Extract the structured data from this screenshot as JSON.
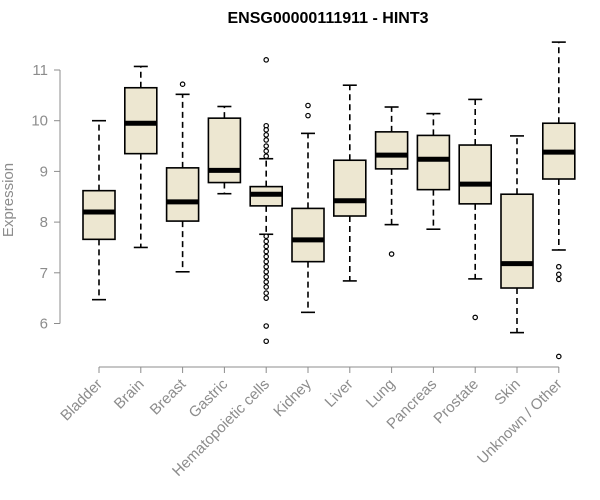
{
  "chart_data": {
    "type": "boxplot",
    "title": "ENSG00000111911 - HINT3",
    "xlabel": "",
    "ylabel": "Expression",
    "ylim": [
      5.3,
      11.7
    ],
    "yticks": [
      6,
      7,
      8,
      9,
      10,
      11
    ],
    "grid": false,
    "box_color": "#ede7d1",
    "categories": [
      "Bladder",
      "Brain",
      "Breast",
      "Gastric",
      "Hematopoietic cells",
      "Kidney",
      "Liver",
      "Lung",
      "Pancreas",
      "Prostate",
      "Skin",
      "Unknown / Other"
    ],
    "boxes": [
      {
        "whisker_low": 6.47,
        "q1": 7.66,
        "median": 8.2,
        "q3": 8.62,
        "whisker_high": 10.0,
        "outliers": []
      },
      {
        "whisker_low": 7.5,
        "q1": 9.35,
        "median": 9.95,
        "q3": 10.65,
        "whisker_high": 11.07,
        "outliers": []
      },
      {
        "whisker_low": 7.02,
        "q1": 8.02,
        "median": 8.4,
        "q3": 9.07,
        "whisker_high": 10.52,
        "outliers": [
          10.72
        ]
      },
      {
        "whisker_low": 8.56,
        "q1": 8.78,
        "median": 9.02,
        "q3": 10.05,
        "whisker_high": 10.28,
        "outliers": []
      },
      {
        "whisker_low": 7.76,
        "q1": 8.32,
        "median": 8.55,
        "q3": 8.7,
        "whisker_high": 9.25,
        "outliers": [
          11.2,
          9.9,
          9.82,
          9.72,
          9.62,
          9.5,
          9.4,
          9.3,
          7.72,
          7.62,
          7.52,
          7.42,
          7.32,
          7.22,
          7.12,
          7.02,
          6.92,
          6.82,
          6.72,
          6.6,
          6.5,
          5.95,
          5.65
        ]
      },
      {
        "whisker_low": 6.22,
        "q1": 7.22,
        "median": 7.65,
        "q3": 8.27,
        "whisker_high": 9.75,
        "outliers": [
          10.3,
          10.1
        ]
      },
      {
        "whisker_low": 6.84,
        "q1": 8.12,
        "median": 8.42,
        "q3": 9.22,
        "whisker_high": 10.7,
        "outliers": []
      },
      {
        "whisker_low": 7.95,
        "q1": 9.05,
        "median": 9.32,
        "q3": 9.78,
        "whisker_high": 10.27,
        "outliers": [
          7.37
        ]
      },
      {
        "whisker_low": 7.86,
        "q1": 8.64,
        "median": 9.24,
        "q3": 9.71,
        "whisker_high": 10.14,
        "outliers": []
      },
      {
        "whisker_low": 6.88,
        "q1": 8.36,
        "median": 8.75,
        "q3": 9.52,
        "whisker_high": 10.42,
        "outliers": [
          6.12
        ]
      },
      {
        "whisker_low": 5.82,
        "q1": 6.7,
        "median": 7.18,
        "q3": 8.55,
        "whisker_high": 9.7,
        "outliers": []
      },
      {
        "whisker_low": 7.45,
        "q1": 8.85,
        "median": 9.38,
        "q3": 9.95,
        "whisker_high": 11.55,
        "outliers": [
          7.12,
          6.97,
          6.87,
          5.35
        ]
      }
    ]
  }
}
